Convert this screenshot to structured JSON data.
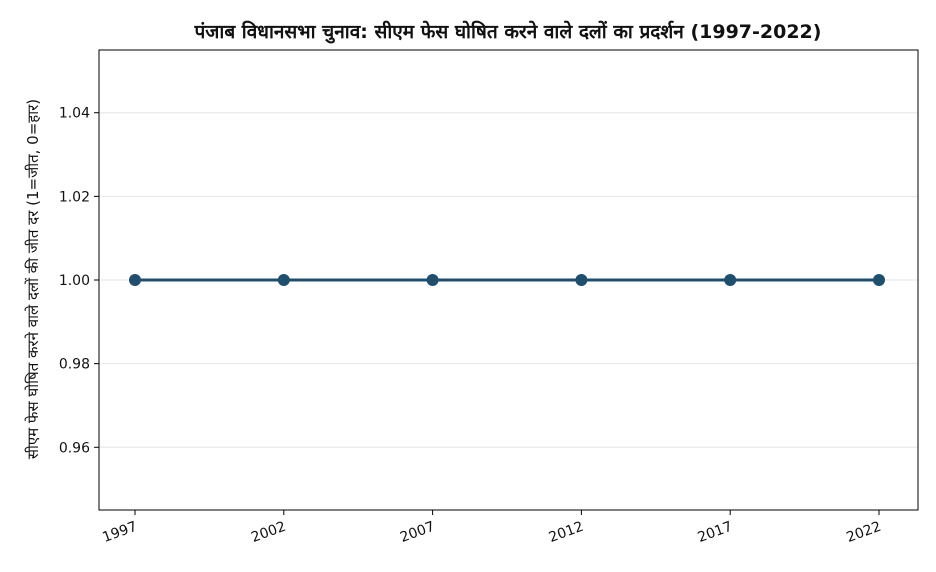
{
  "chart_data": {
    "type": "line",
    "title": "पंजाब विधानसभा चुनाव: सीएम फेस घोषित करने वाले दलों का प्रदर्शन (1997-2022)",
    "xlabel": "",
    "ylabel": "सीएम फेस घोषित करने वाले दलों की जीत दर (1=जीत, 0=हार)",
    "categories": [
      "1997",
      "2002",
      "2007",
      "2012",
      "2017",
      "2022"
    ],
    "series": [
      {
        "values": [
          1,
          1,
          1,
          1,
          1,
          1
        ]
      }
    ],
    "ylim": [
      0.945,
      1.055
    ],
    "yticks": [
      0.96,
      0.98,
      1.0,
      1.02,
      1.04
    ],
    "ytick_labels": [
      "0.96",
      "0.98",
      "1.00",
      "1.02",
      "1.04"
    ],
    "grid": "horizontal",
    "legend": "none",
    "x_tick_rotation": "slanted",
    "colors": {
      "line": "#1f4e6e",
      "grid": "#e6e6e6",
      "axes": "#000000"
    }
  }
}
